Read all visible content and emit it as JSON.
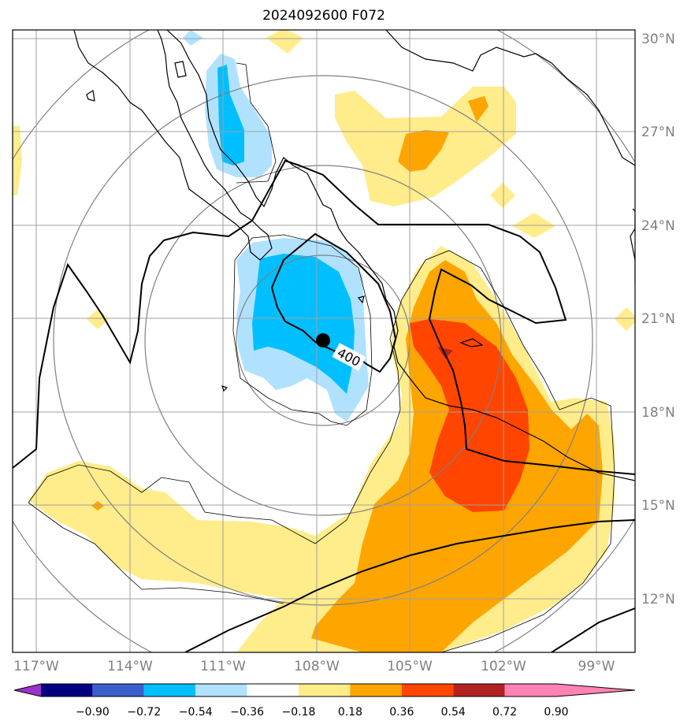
{
  "title": "2024092600 F072",
  "lat_labels": [
    "30°N",
    "27°N",
    "24°N",
    "21°N",
    "18°N",
    "15°N",
    "12°N"
  ],
  "lon_labels": [
    "117°W",
    "114°W",
    "111°W",
    "108°W",
    "105°W",
    "102°W",
    "99°W"
  ],
  "contour_label": "400",
  "colorbar": {
    "ticks": [
      "−0.90",
      "−0.72",
      "−0.54",
      "−0.36",
      "−0.18",
      "0.18",
      "0.36",
      "0.54",
      "0.72",
      "0.90"
    ],
    "colors": [
      "#9932cc",
      "#000080",
      "#3a5fcd",
      "#00bfff",
      "#b0e2ff",
      "#ffffff",
      "#ffec8b",
      "#ffa500",
      "#ff4500",
      "#b22222",
      "#ff83b4"
    ]
  },
  "map": {
    "lon_range": [
      "117.75°W",
      "97.75°W"
    ],
    "lat_range": [
      "10.25°N",
      "30.25°N"
    ],
    "storm_center": {
      "lon": "-107.8",
      "lat": "20.3"
    }
  }
}
